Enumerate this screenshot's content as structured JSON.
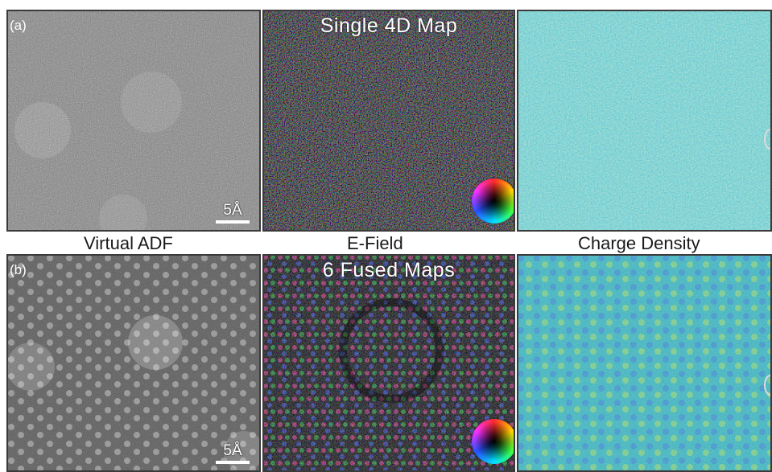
{
  "panel_a": {
    "letter": "(a)",
    "title": "Single 4D Map",
    "scale_label": "5Å"
  },
  "panel_b": {
    "letter": "(b)",
    "title": "6 Fused Maps",
    "scale_label": "5Å"
  },
  "captions": {
    "left": "Virtual ADF",
    "middle": "E-Field",
    "right": "Charge Density"
  },
  "colors": {
    "adf_gray": "#7a7a7a",
    "efield_dark": "#222233",
    "charge_teal": "#2aa6a6",
    "frame": "#3a3a3a"
  }
}
